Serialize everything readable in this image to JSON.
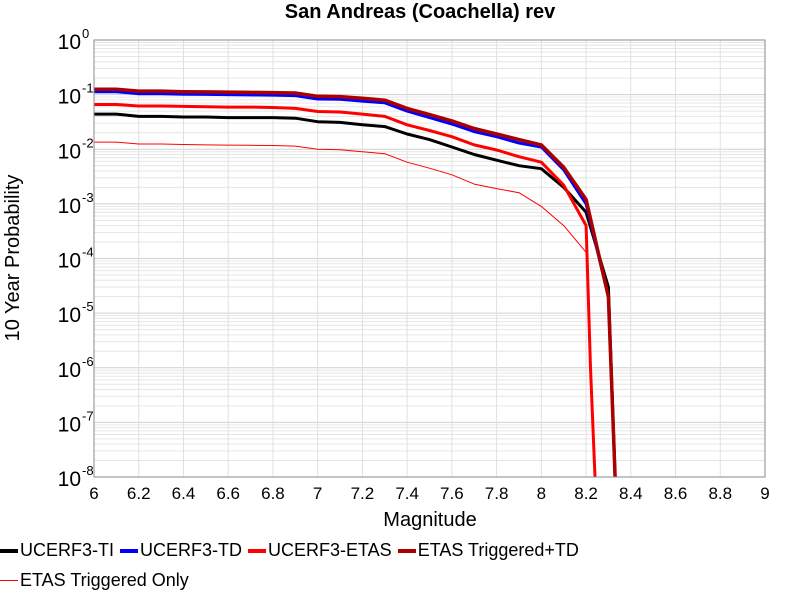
{
  "chart_data": {
    "type": "line",
    "title": "San Andreas (Coachella) rev",
    "xlabel": "Magnitude",
    "ylabel": "10 Year Probability",
    "xlim": [
      6,
      9
    ],
    "ylim": [
      1e-08,
      1
    ],
    "yscale": "log",
    "grid": true,
    "legend_position": "bottom",
    "x_ticks": [
      "6",
      "6.2",
      "6.4",
      "6.6",
      "6.8",
      "7",
      "7.2",
      "7.4",
      "7.6",
      "7.8",
      "8",
      "8.2",
      "8.4",
      "8.6",
      "8.8",
      "9"
    ],
    "y_tick_exponents": [
      "0",
      "-1",
      "-2",
      "-3",
      "-4",
      "-5",
      "-6",
      "-7",
      "-8"
    ],
    "series": [
      {
        "name": "UCERF3-TI",
        "color": "#000000",
        "width": 3,
        "x": [
          6.0,
          6.1,
          6.2,
          6.3,
          6.4,
          6.5,
          6.6,
          6.7,
          6.8,
          6.9,
          7.0,
          7.1,
          7.2,
          7.3,
          7.4,
          7.5,
          7.6,
          7.7,
          7.8,
          7.9,
          8.0,
          8.1,
          8.2,
          8.3,
          8.33
        ],
        "y": [
          0.044,
          0.044,
          0.04,
          0.04,
          0.039,
          0.039,
          0.038,
          0.038,
          0.038,
          0.037,
          0.032,
          0.031,
          0.028,
          0.026,
          0.019,
          0.015,
          0.011,
          0.008,
          0.0063,
          0.005,
          0.0044,
          0.002,
          0.0007,
          3e-05,
          1e-08
        ]
      },
      {
        "name": "UCERF3-TD",
        "color": "#0000ff",
        "width": 3,
        "x": [
          6.0,
          6.1,
          6.2,
          6.3,
          6.4,
          6.5,
          6.6,
          6.7,
          6.8,
          6.9,
          7.0,
          7.1,
          7.2,
          7.3,
          7.4,
          7.5,
          7.6,
          7.7,
          7.8,
          7.9,
          8.0,
          8.1,
          8.2,
          8.3,
          8.33
        ],
        "y": [
          0.113,
          0.113,
          0.104,
          0.104,
          0.102,
          0.101,
          0.1,
          0.099,
          0.098,
          0.096,
          0.083,
          0.082,
          0.076,
          0.071,
          0.05,
          0.038,
          0.029,
          0.021,
          0.017,
          0.013,
          0.011,
          0.0042,
          0.001,
          2e-05,
          1e-08
        ]
      },
      {
        "name": "UCERF3-ETAS",
        "color": "#ff0000",
        "width": 3,
        "x": [
          6.0,
          6.1,
          6.2,
          6.3,
          6.4,
          6.5,
          6.6,
          6.7,
          6.8,
          6.9,
          7.0,
          7.1,
          7.2,
          7.3,
          7.4,
          7.5,
          7.6,
          7.7,
          7.8,
          7.9,
          8.0,
          8.1,
          8.2,
          8.22,
          8.24
        ],
        "y": [
          0.066,
          0.066,
          0.062,
          0.062,
          0.061,
          0.06,
          0.059,
          0.059,
          0.058,
          0.056,
          0.049,
          0.048,
          0.044,
          0.04,
          0.028,
          0.022,
          0.017,
          0.012,
          0.0097,
          0.0073,
          0.0058,
          0.0022,
          0.0004,
          1e-06,
          1e-08
        ]
      },
      {
        "name": "ETAS Triggered+TD",
        "color": "#aa0000",
        "width": 3.5,
        "x": [
          6.0,
          6.1,
          6.2,
          6.3,
          6.4,
          6.5,
          6.6,
          6.7,
          6.8,
          6.9,
          7.0,
          7.1,
          7.2,
          7.3,
          7.4,
          7.5,
          7.6,
          7.7,
          7.8,
          7.9,
          8.0,
          8.1,
          8.2,
          8.3,
          8.33
        ],
        "y": [
          0.125,
          0.125,
          0.116,
          0.116,
          0.113,
          0.112,
          0.111,
          0.11,
          0.109,
          0.107,
          0.093,
          0.092,
          0.086,
          0.079,
          0.056,
          0.043,
          0.033,
          0.024,
          0.019,
          0.015,
          0.012,
          0.0047,
          0.0012,
          2e-05,
          1e-08
        ]
      },
      {
        "name": "ETAS Triggered Only",
        "color": "#ff0000",
        "width": 1,
        "x": [
          6.0,
          6.1,
          6.2,
          6.3,
          6.4,
          6.5,
          6.6,
          6.7,
          6.8,
          6.9,
          7.0,
          7.1,
          7.2,
          7.3,
          7.4,
          7.5,
          7.6,
          7.7,
          7.8,
          7.9,
          8.0,
          8.1,
          8.2,
          8.22,
          8.24
        ],
        "y": [
          0.0135,
          0.0135,
          0.0125,
          0.0125,
          0.0122,
          0.012,
          0.0119,
          0.0118,
          0.0117,
          0.0114,
          0.01,
          0.0098,
          0.009,
          0.0083,
          0.0058,
          0.0045,
          0.0034,
          0.0023,
          0.0019,
          0.0016,
          0.0009,
          0.0004,
          0.00013,
          1e-06,
          1e-08
        ]
      }
    ]
  }
}
